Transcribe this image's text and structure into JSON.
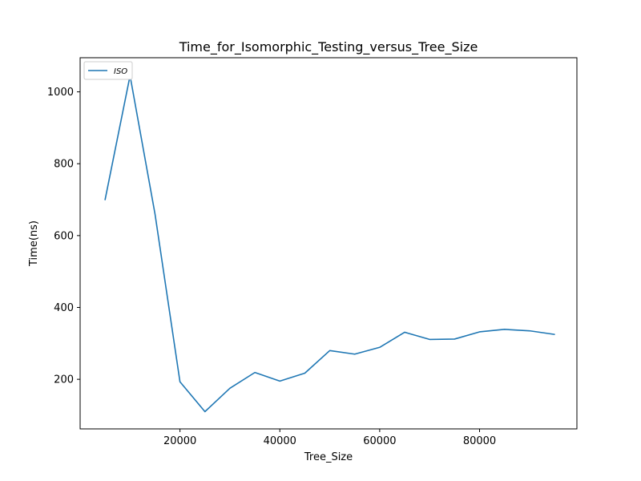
{
  "chart_data": {
    "type": "line",
    "title": "Time_for_Isomorphic_Testing_versus_Tree_Size",
    "xlabel": "Tree_Size",
    "ylabel": "Time(ns)",
    "xlim": [
      0,
      99500
    ],
    "ylim": [
      62,
      1095
    ],
    "xticks": [
      20000,
      40000,
      60000,
      80000
    ],
    "yticks": [
      200,
      400,
      600,
      800,
      1000
    ],
    "grid": false,
    "legend_position": "top-left",
    "series": [
      {
        "name": "ISO",
        "color": "#1f77b4",
        "x": [
          5000,
          10000,
          15000,
          20000,
          25000,
          30000,
          35000,
          40000,
          45000,
          50000,
          55000,
          60000,
          65000,
          70000,
          75000,
          80000,
          85000,
          90000,
          95000
        ],
        "y": [
          700,
          1045,
          660,
          193,
          110,
          175,
          219,
          195,
          217,
          280,
          270,
          289,
          331,
          311,
          312,
          332,
          339,
          335,
          325
        ]
      }
    ]
  }
}
